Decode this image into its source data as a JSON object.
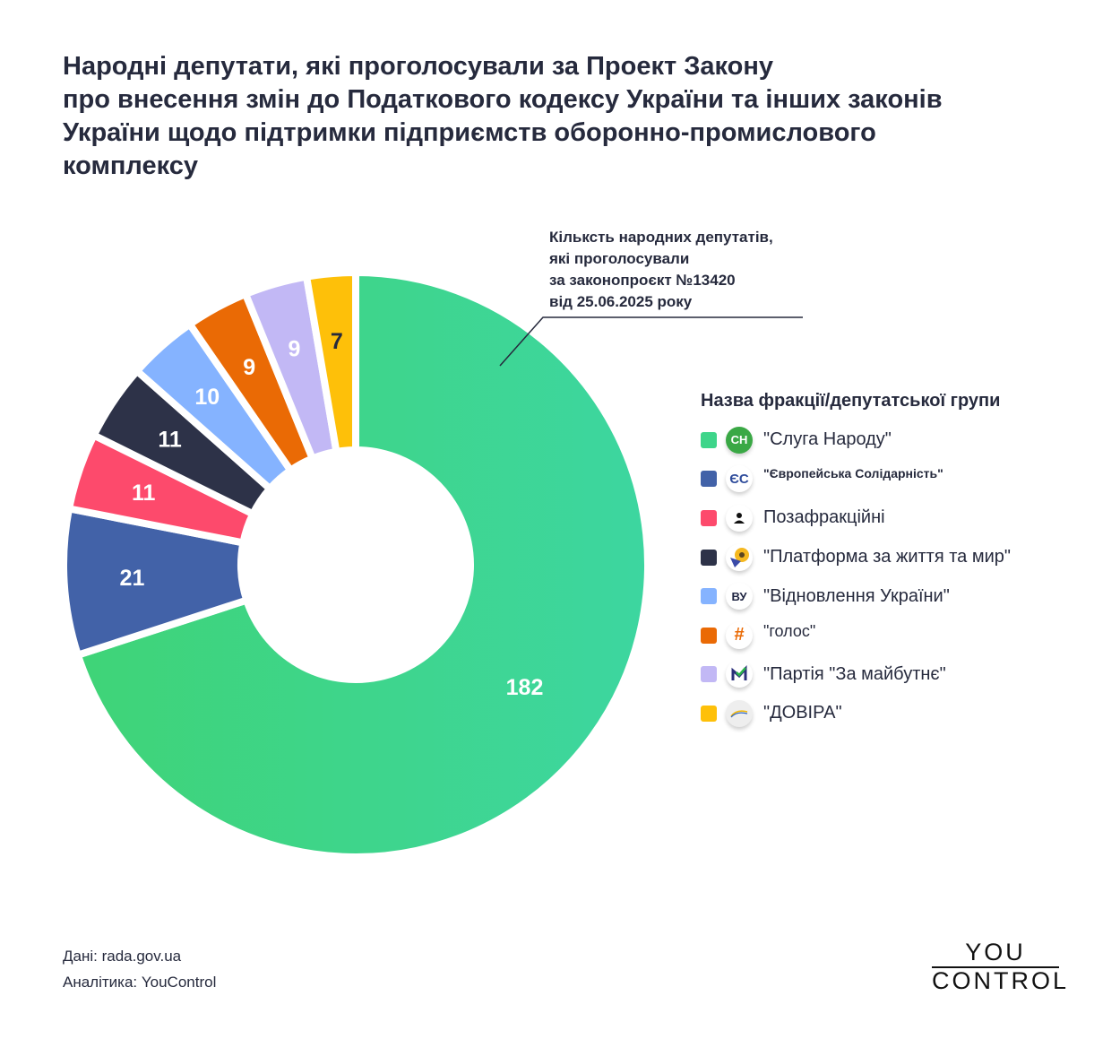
{
  "title": {
    "lines": [
      "Народні депутати, які проголосували за Проект Закону",
      "про внесення змін до Податкового кодексу України та інших законів",
      "України щодо підтримки підприємств оборонно-промислового",
      "комплексу"
    ]
  },
  "annotation": {
    "lines": [
      "Кільксть народних депутатів,",
      "які проголосували",
      "за законопроєкт №13420",
      "від 25.06.2025 року"
    ]
  },
  "chart_data": {
    "type": "pie",
    "variant": "donut",
    "title": "",
    "categories": [
      "\"Слуга Народу\"",
      "\"Європейська Солідарність\"",
      "Позафракційні",
      "\"Платформа за життя та мир\"",
      "\"Відновлення України\"",
      "\"голос\"",
      "\"Партія \"За майбутнє\"",
      "\"ДОВІРА\""
    ],
    "values": [
      182,
      21,
      11,
      11,
      10,
      9,
      9,
      7
    ],
    "colors": [
      "#3ed58a",
      "#4262a8",
      "#fd4a6c",
      "#2d3248",
      "#85b3ff",
      "#ea6a05",
      "#c2b8f5",
      "#fec009"
    ],
    "label_colors": [
      "#ffffff",
      "#ffffff",
      "#ffffff",
      "#ffffff",
      "#ffffff",
      "#ffffff",
      "#ffffff",
      "#262a3d"
    ],
    "legend_placement": "right"
  },
  "legend": {
    "title": "Назва фракції/депутатської групи",
    "items": [
      {
        "label": "\"Слуга Народу\"",
        "logo_text": "СН",
        "icon": "sluha-narodu-logo"
      },
      {
        "label": "\"Європейська Солідарність\"",
        "logo_text": "ЄС",
        "icon": "yevropeiska-solidarnist-logo"
      },
      {
        "label": "Позафракційні",
        "icon": "person-icon"
      },
      {
        "label": "\"Платформа за життя та мир\"",
        "icon": "sunflower-logo"
      },
      {
        "label": "\"Відновлення України\"",
        "logo_text": "ВУ",
        "icon": "vidnovlennia-logo"
      },
      {
        "label": "\"голос\"",
        "icon": "holos-logo"
      },
      {
        "label": "\"Партія \"За майбутнє\"",
        "icon": "za-maibutnie-logo"
      },
      {
        "label": "\"ДОВІРА\"",
        "icon": "dovira-logo"
      }
    ]
  },
  "footer": {
    "source": "Дані: rada.gov.ua",
    "analytics": "Аналітика: YouControl"
  },
  "brand": {
    "line1": "YOU",
    "line2": "CONTROL"
  }
}
